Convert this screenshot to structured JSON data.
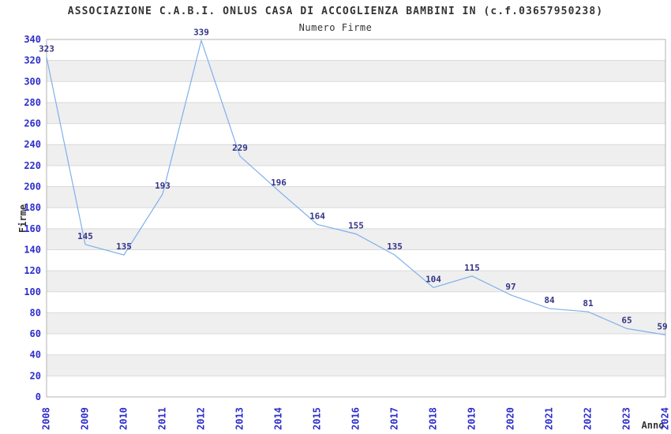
{
  "chart_data": {
    "type": "line",
    "title": "ASSOCIAZIONE C.A.B.I. ONLUS CASA DI ACCOGLIENZA BAMBINI IN (c.f.03657950238)",
    "subtitle": "Numero Firme",
    "xlabel": "Anno",
    "ylabel": "Firme",
    "categories": [
      "2008",
      "2009",
      "2010",
      "2011",
      "2012",
      "2013",
      "2014",
      "2015",
      "2016",
      "2017",
      "2018",
      "2019",
      "2020",
      "2021",
      "2022",
      "2023",
      "2024"
    ],
    "series": [
      {
        "name": "Numero Firme",
        "values": [
          323,
          145,
          135,
          193,
          339,
          229,
          196,
          164,
          155,
          135,
          104,
          115,
          97,
          84,
          81,
          65,
          59
        ]
      }
    ],
    "ylim": [
      0,
      340
    ],
    "ytick_step": 20,
    "grid": true,
    "band_fill": "alternating",
    "legend_position": "none",
    "colors": {
      "line": "#7fb0ec",
      "tick_labels": "#2d2dcc",
      "point_labels": "#333388",
      "band": "#efefef",
      "grid": "#d9d9d9",
      "border": "#b3b3b3",
      "text": "#333333"
    }
  }
}
